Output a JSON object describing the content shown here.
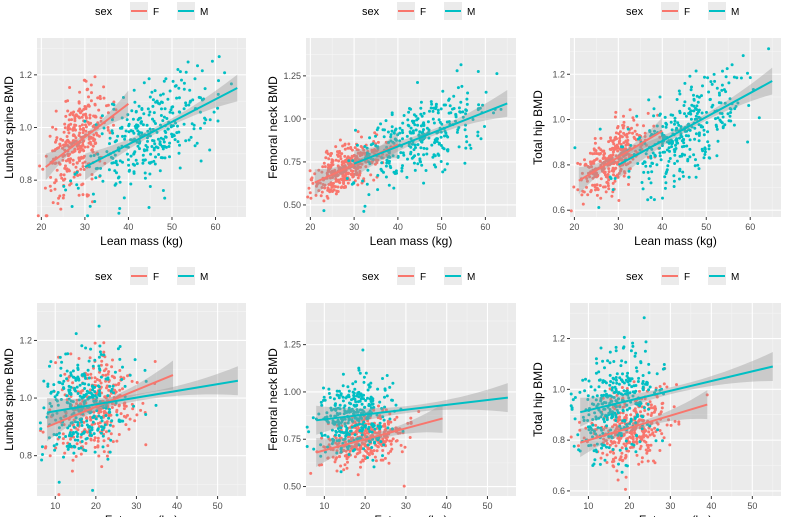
{
  "figure": {
    "legend_title": "sex",
    "legend_entries": [
      "F",
      "M"
    ]
  },
  "colors": {
    "F": "#F8766D",
    "M": "#00BFC4",
    "panel_bg": "#EBEBEB",
    "grid_major": "#FFFFFF",
    "ci_band": "#999999"
  },
  "chart_data": [
    {
      "type": "scatter",
      "id": "lean-lumbar",
      "xlabel": "Lean mass (kg)",
      "ylabel": "Lumbar spine BMD",
      "xlim": [
        19,
        67
      ],
      "ylim": [
        0.66,
        1.34
      ],
      "xticks": [
        20,
        30,
        40,
        50,
        60
      ],
      "xtick_labels": [
        "20",
        "30",
        "40",
        "50",
        "60"
      ],
      "yticks": [
        0.8,
        1.0,
        1.2
      ],
      "ytick_labels": [
        "0.8",
        "1.0",
        "1.2"
      ],
      "legend": "top",
      "grid": true,
      "series": [
        {
          "name": "F",
          "fit": {
            "x": [
              21,
              40
            ],
            "y": [
              0.85,
              1.09
            ]
          },
          "x_mean": 28.5,
          "x_sd": 3.7,
          "y_mean": 0.95,
          "y_sd": 0.1,
          "n": 330
        },
        {
          "name": "M",
          "fit": {
            "x": [
              30,
              65
            ],
            "y": [
              0.85,
              1.15
            ]
          },
          "x_mean": 44.5,
          "x_sd": 7.5,
          "y_mean": 0.98,
          "y_sd": 0.11,
          "n": 330
        }
      ]
    },
    {
      "type": "scatter",
      "id": "lean-femoral",
      "xlabel": "Lean mass (kg)",
      "ylabel": "Femoral neck BMD",
      "xlim": [
        19,
        67
      ],
      "ylim": [
        0.43,
        1.47
      ],
      "xticks": [
        20,
        30,
        40,
        50,
        60
      ],
      "xtick_labels": [
        "20",
        "30",
        "40",
        "50",
        "60"
      ],
      "yticks": [
        0.5,
        0.75,
        1.0,
        1.25
      ],
      "ytick_labels": [
        "0.50",
        "0.75",
        "1.00",
        "1.25"
      ],
      "legend": "top",
      "grid": true,
      "series": [
        {
          "name": "F",
          "fit": {
            "x": [
              21,
              40
            ],
            "y": [
              0.63,
              0.85
            ]
          },
          "x_mean": 28.5,
          "x_sd": 3.7,
          "y_mean": 0.73,
          "y_sd": 0.08,
          "n": 330
        },
        {
          "name": "M",
          "fit": {
            "x": [
              30,
              65
            ],
            "y": [
              0.74,
              1.09
            ]
          },
          "x_mean": 44.5,
          "x_sd": 7.5,
          "y_mean": 0.89,
          "y_sd": 0.12,
          "n": 330
        }
      ]
    },
    {
      "type": "scatter",
      "id": "lean-totalhip",
      "xlabel": "Lean mass (kg)",
      "ylabel": "Total hip BMD",
      "xlim": [
        19,
        67
      ],
      "ylim": [
        0.57,
        1.36
      ],
      "xticks": [
        20,
        30,
        40,
        50,
        60
      ],
      "xtick_labels": [
        "20",
        "30",
        "40",
        "50",
        "60"
      ],
      "yticks": [
        0.6,
        0.8,
        1.0,
        1.2
      ],
      "ytick_labels": [
        "0.6",
        "0.8",
        "1.0",
        "1.2"
      ],
      "legend": "top",
      "grid": true,
      "series": [
        {
          "name": "F",
          "fit": {
            "x": [
              21,
              40
            ],
            "y": [
              0.73,
              0.95
            ]
          },
          "x_mean": 28.5,
          "x_sd": 3.7,
          "y_mean": 0.84,
          "y_sd": 0.08,
          "n": 330
        },
        {
          "name": "M",
          "fit": {
            "x": [
              30,
              65
            ],
            "y": [
              0.8,
              1.17
            ]
          },
          "x_mean": 44.5,
          "x_sd": 7.5,
          "y_mean": 0.97,
          "y_sd": 0.12,
          "n": 330
        }
      ]
    },
    {
      "type": "scatter",
      "id": "fat-lumbar",
      "xlabel": "Fat mass (kg)",
      "ylabel": "Lumbar spine BMD",
      "xlim": [
        5.5,
        57
      ],
      "ylim": [
        0.66,
        1.33
      ],
      "xticks": [
        10,
        20,
        30,
        40,
        50
      ],
      "xtick_labels": [
        "10",
        "20",
        "30",
        "40",
        "50"
      ],
      "yticks": [
        0.8,
        1.0,
        1.2
      ],
      "ytick_labels": [
        "0.8",
        "1.0",
        "1.2"
      ],
      "legend": "top",
      "grid": true,
      "series": [
        {
          "name": "F",
          "fit": {
            "x": [
              8,
              39
            ],
            "y": [
              0.9,
              1.08
            ]
          },
          "x_mean": 20,
          "x_sd": 5,
          "y_mean": 0.95,
          "y_sd": 0.1,
          "n": 330
        },
        {
          "name": "M",
          "fit": {
            "x": [
              8,
              55
            ],
            "y": [
              0.95,
              1.06
            ]
          },
          "x_mean": 17,
          "x_sd": 5,
          "y_mean": 0.98,
          "y_sd": 0.11,
          "n": 330
        }
      ]
    },
    {
      "type": "scatter",
      "id": "fat-femoral",
      "xlabel": "Fat mass (kg)",
      "ylabel": "Femoral neck BMD",
      "xlim": [
        5.5,
        57
      ],
      "ylim": [
        0.45,
        1.47
      ],
      "xticks": [
        10,
        20,
        30,
        40,
        50
      ],
      "xtick_labels": [
        "10",
        "20",
        "30",
        "40",
        "50"
      ],
      "yticks": [
        0.5,
        0.75,
        1.0,
        1.25
      ],
      "ytick_labels": [
        "0.50",
        "0.75",
        "1.00",
        "1.25"
      ],
      "legend": "top",
      "grid": true,
      "series": [
        {
          "name": "F",
          "fit": {
            "x": [
              8,
              39
            ],
            "y": [
              0.68,
              0.86
            ]
          },
          "x_mean": 20,
          "x_sd": 5,
          "y_mean": 0.74,
          "y_sd": 0.08,
          "n": 330
        },
        {
          "name": "M",
          "fit": {
            "x": [
              8,
              55
            ],
            "y": [
              0.85,
              0.97
            ]
          },
          "x_mean": 17,
          "x_sd": 5,
          "y_mean": 0.88,
          "y_sd": 0.12,
          "n": 330
        }
      ]
    },
    {
      "type": "scatter",
      "id": "fat-totalhip",
      "xlabel": "Fat mass (kg)",
      "ylabel": "Total hip BMD",
      "xlim": [
        5.5,
        57
      ],
      "ylim": [
        0.58,
        1.34
      ],
      "xticks": [
        10,
        20,
        30,
        40,
        50
      ],
      "xtick_labels": [
        "10",
        "20",
        "30",
        "40",
        "50"
      ],
      "yticks": [
        0.6,
        0.8,
        1.0,
        1.2
      ],
      "ytick_labels": [
        "0.6",
        "0.8",
        "1.0",
        "1.2"
      ],
      "legend": "top",
      "grid": true,
      "series": [
        {
          "name": "F",
          "fit": {
            "x": [
              8,
              39
            ],
            "y": [
              0.79,
              0.94
            ]
          },
          "x_mean": 20,
          "x_sd": 5,
          "y_mean": 0.84,
          "y_sd": 0.08,
          "n": 330
        },
        {
          "name": "M",
          "fit": {
            "x": [
              8,
              55
            ],
            "y": [
              0.91,
              1.09
            ]
          },
          "x_mean": 17,
          "x_sd": 5,
          "y_mean": 0.96,
          "y_sd": 0.12,
          "n": 330
        }
      ]
    }
  ]
}
